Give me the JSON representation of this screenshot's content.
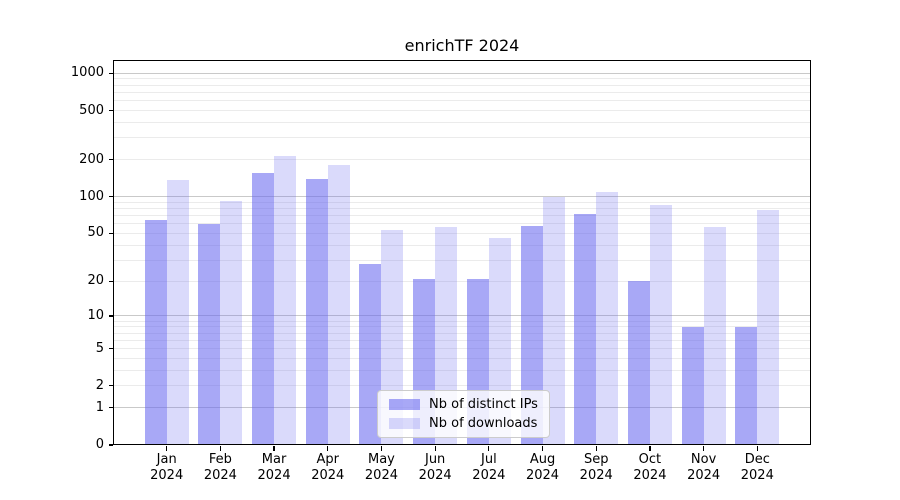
{
  "figure": {
    "background": "#ffffff"
  },
  "chart_data": {
    "type": "bar",
    "title": "enrichTF 2024",
    "categories": [
      "Jan",
      "Feb",
      "Mar",
      "Apr",
      "May",
      "Jun",
      "Jul",
      "Aug",
      "Sep",
      "Oct",
      "Nov",
      "Dec"
    ],
    "year_label": "2024",
    "series": [
      {
        "name": "Nb of distinct IPs",
        "color": "rgba(102,102,240,0.57)",
        "values": [
          65,
          60,
          155,
          140,
          28,
          21,
          21,
          58,
          72,
          20,
          8,
          8
        ]
      },
      {
        "name": "Nb of downloads",
        "color": "rgba(102,102,240,0.24)",
        "values": [
          138,
          92,
          215,
          181,
          53,
          57,
          46,
          100,
          110,
          85,
          57,
          78
        ]
      }
    ],
    "yscale": "log1p",
    "yticks": [
      0,
      1,
      2,
      5,
      10,
      20,
      50,
      100,
      200,
      500,
      1000
    ],
    "ylim": [
      0,
      1281
    ],
    "xlabel": "",
    "ylabel": "",
    "grid": "horizontal-major-and-minor",
    "legend_position": "lower-center-inside"
  },
  "colors": {
    "grid_major": "#c9c9c9",
    "grid_minor": "#ebebeb",
    "spine": "#000000",
    "text": "#000000",
    "legend_border": "#cccccc",
    "legend_background": "rgba(255,255,255,0.8)"
  }
}
